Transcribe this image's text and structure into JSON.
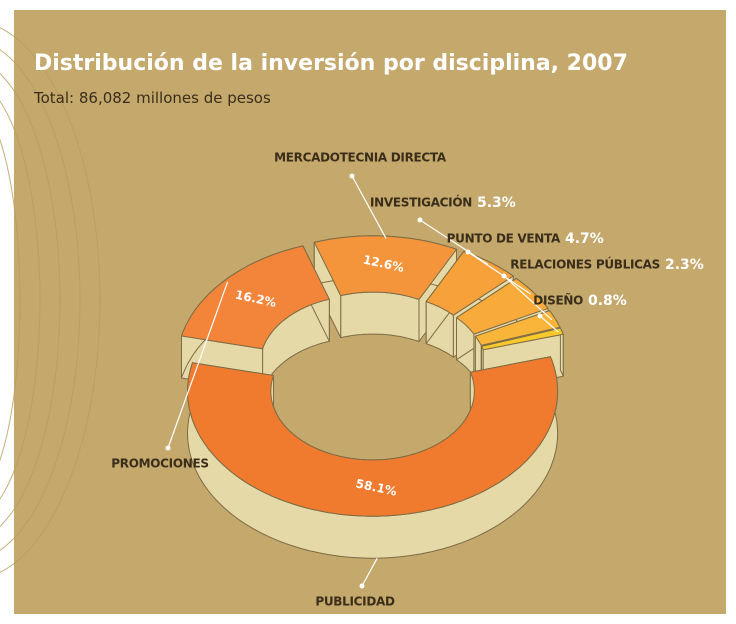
{
  "chart_data": {
    "type": "pie",
    "title": "Distribución de la inversión por disciplina, 2007",
    "subtitle": "Total: 86,082 millones de pesos",
    "categories": [
      "PUBLICIDAD",
      "PROMOCIONES",
      "MERCADOTECNIA DIRECTA",
      "INVESTIGACIÓN",
      "PUNTO DE VENTA",
      "RELACIONES PÚBLICAS",
      "DISEÑO"
    ],
    "values": [
      58.1,
      16.2,
      12.6,
      5.3,
      4.7,
      2.3,
      0.8
    ],
    "value_labels": [
      "58.1%",
      "16.2%",
      "12.6%",
      "5.3%",
      "4.7%",
      "2.3%",
      "0.8%"
    ],
    "colors": [
      "#f07a2e",
      "#f2853a",
      "#f4953c",
      "#f6a13a",
      "#f8ab3a",
      "#f9b43a",
      "#f9c82a"
    ]
  }
}
